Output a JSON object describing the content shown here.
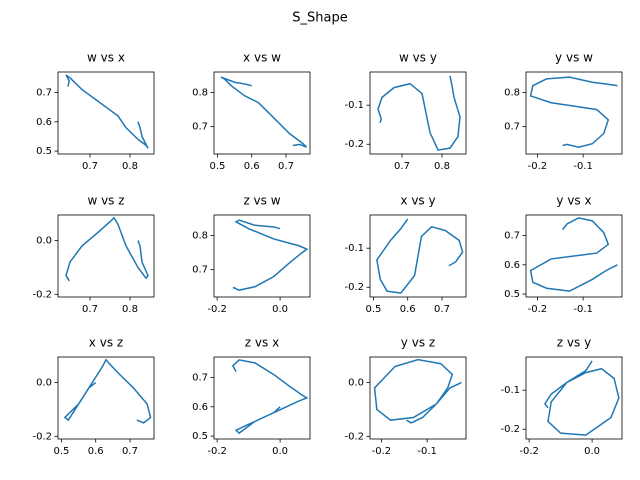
{
  "title": "S_Shape",
  "chart_data": [
    {
      "type": "line",
      "title": "w vs x",
      "x": [
        0.645,
        0.648,
        0.64,
        0.65,
        0.68,
        0.72,
        0.75,
        0.76,
        0.77,
        0.79,
        0.82,
        0.84,
        0.845,
        0.83,
        0.825,
        0.82
      ],
      "series": [
        {
          "color": "#1f77b4",
          "values": [
            0.72,
            0.74,
            0.76,
            0.75,
            0.71,
            0.67,
            0.64,
            0.63,
            0.62,
            0.58,
            0.54,
            0.52,
            0.51,
            0.55,
            0.58,
            0.6
          ]
        }
      ],
      "xlim": [
        0.62,
        0.86
      ],
      "ylim": [
        0.49,
        0.77
      ],
      "xticks": [
        0.7,
        0.8
      ],
      "yticks": [
        0.5,
        0.6,
        0.7
      ]
    },
    {
      "type": "line",
      "title": "x vs w",
      "x": [
        0.72,
        0.74,
        0.76,
        0.75,
        0.71,
        0.67,
        0.64,
        0.63,
        0.62,
        0.58,
        0.54,
        0.52,
        0.51,
        0.55,
        0.58,
        0.6
      ],
      "series": [
        {
          "color": "#1f77b4",
          "values": [
            0.645,
            0.648,
            0.64,
            0.65,
            0.68,
            0.72,
            0.75,
            0.76,
            0.77,
            0.79,
            0.82,
            0.84,
            0.845,
            0.83,
            0.825,
            0.82
          ]
        }
      ],
      "xlim": [
        0.49,
        0.77
      ],
      "ylim": [
        0.62,
        0.86
      ],
      "xticks": [
        0.5,
        0.6,
        0.7
      ],
      "yticks": [
        0.7,
        0.8
      ]
    },
    {
      "type": "line",
      "title": "w vs y",
      "x": [
        0.645,
        0.648,
        0.64,
        0.65,
        0.68,
        0.72,
        0.75,
        0.76,
        0.77,
        0.79,
        0.82,
        0.84,
        0.845,
        0.83,
        0.825,
        0.82
      ],
      "series": [
        {
          "color": "#1f77b4",
          "values": [
            -0.145,
            -0.135,
            -0.11,
            -0.08,
            -0.055,
            -0.045,
            -0.07,
            -0.12,
            -0.17,
            -0.215,
            -0.21,
            -0.18,
            -0.13,
            -0.08,
            -0.05,
            -0.025
          ]
        }
      ],
      "xlim": [
        0.62,
        0.86
      ],
      "ylim": [
        -0.225,
        -0.015
      ],
      "xticks": [
        0.7,
        0.8
      ],
      "yticks": [
        -0.2,
        -0.1
      ]
    },
    {
      "type": "line",
      "title": "y vs w",
      "x": [
        -0.145,
        -0.135,
        -0.11,
        -0.08,
        -0.055,
        -0.045,
        -0.07,
        -0.12,
        -0.17,
        -0.215,
        -0.21,
        -0.18,
        -0.13,
        -0.08,
        -0.05,
        -0.025
      ],
      "series": [
        {
          "color": "#1f77b4",
          "values": [
            0.645,
            0.648,
            0.64,
            0.65,
            0.68,
            0.72,
            0.75,
            0.76,
            0.77,
            0.79,
            0.82,
            0.84,
            0.845,
            0.83,
            0.825,
            0.82
          ]
        }
      ],
      "xlim": [
        -0.225,
        -0.015
      ],
      "ylim": [
        0.62,
        0.86
      ],
      "xticks": [
        -0.2,
        -0.1
      ],
      "yticks": [
        0.7,
        0.8
      ]
    },
    {
      "type": "line",
      "title": "w vs z",
      "x": [
        0.645,
        0.648,
        0.64,
        0.65,
        0.68,
        0.72,
        0.75,
        0.76,
        0.77,
        0.79,
        0.82,
        0.84,
        0.845,
        0.83,
        0.825,
        0.82
      ],
      "series": [
        {
          "color": "#1f77b4",
          "values": [
            -0.14,
            -0.15,
            -0.13,
            -0.08,
            -0.02,
            0.03,
            0.07,
            0.085,
            0.06,
            -0.02,
            -0.1,
            -0.14,
            -0.13,
            -0.08,
            -0.02,
            0.0
          ]
        }
      ],
      "xlim": [
        0.62,
        0.86
      ],
      "ylim": [
        -0.21,
        0.095
      ],
      "xticks": [
        0.7,
        0.8
      ],
      "yticks": [
        -0.2,
        {
          "value": 0,
          "label": "0.0"
        }
      ]
    },
    {
      "type": "line",
      "title": "z vs w",
      "x": [
        -0.14,
        -0.15,
        -0.13,
        -0.08,
        -0.02,
        0.03,
        0.07,
        0.085,
        0.06,
        -0.02,
        -0.1,
        -0.14,
        -0.13,
        -0.08,
        -0.02,
        0.0
      ],
      "series": [
        {
          "color": "#1f77b4",
          "values": [
            0.645,
            0.648,
            0.64,
            0.65,
            0.68,
            0.72,
            0.75,
            0.76,
            0.77,
            0.79,
            0.82,
            0.84,
            0.845,
            0.83,
            0.825,
            0.82
          ]
        }
      ],
      "xlim": [
        -0.21,
        0.095
      ],
      "ylim": [
        0.62,
        0.86
      ],
      "xticks": [
        -0.2,
        {
          "value": 0,
          "label": "0.0"
        }
      ],
      "yticks": [
        0.7,
        0.8
      ]
    },
    {
      "type": "line",
      "title": "x vs y",
      "x": [
        0.72,
        0.74,
        0.76,
        0.75,
        0.71,
        0.67,
        0.64,
        0.63,
        0.62,
        0.58,
        0.54,
        0.52,
        0.51,
        0.55,
        0.58,
        0.6
      ],
      "series": [
        {
          "color": "#1f77b4",
          "values": [
            -0.145,
            -0.135,
            -0.11,
            -0.08,
            -0.055,
            -0.045,
            -0.07,
            -0.12,
            -0.17,
            -0.215,
            -0.21,
            -0.18,
            -0.13,
            -0.08,
            -0.05,
            -0.025
          ]
        }
      ],
      "xlim": [
        0.49,
        0.77
      ],
      "ylim": [
        -0.225,
        -0.015
      ],
      "xticks": [
        0.5,
        0.6,
        0.7
      ],
      "yticks": [
        -0.2,
        -0.1
      ]
    },
    {
      "type": "line",
      "title": "y vs x",
      "x": [
        -0.145,
        -0.135,
        -0.11,
        -0.08,
        -0.055,
        -0.045,
        -0.07,
        -0.12,
        -0.17,
        -0.215,
        -0.21,
        -0.18,
        -0.13,
        -0.08,
        -0.05,
        -0.025
      ],
      "series": [
        {
          "color": "#1f77b4",
          "values": [
            0.72,
            0.74,
            0.76,
            0.75,
            0.71,
            0.67,
            0.64,
            0.63,
            0.62,
            0.58,
            0.54,
            0.52,
            0.51,
            0.55,
            0.58,
            0.6
          ]
        }
      ],
      "xlim": [
        -0.225,
        -0.015
      ],
      "ylim": [
        0.49,
        0.77
      ],
      "xticks": [
        -0.2,
        -0.1
      ],
      "yticks": [
        0.5,
        0.6,
        0.7
      ]
    },
    {
      "type": "line",
      "title": "x vs z",
      "x": [
        0.72,
        0.74,
        0.76,
        0.75,
        0.71,
        0.67,
        0.64,
        0.63,
        0.62,
        0.58,
        0.54,
        0.52,
        0.51,
        0.55,
        0.58,
        0.6
      ],
      "series": [
        {
          "color": "#1f77b4",
          "values": [
            -0.14,
            -0.15,
            -0.13,
            -0.08,
            -0.02,
            0.03,
            0.07,
            0.085,
            0.06,
            -0.02,
            -0.1,
            -0.14,
            -0.13,
            -0.08,
            -0.02,
            0.0
          ]
        }
      ],
      "xlim": [
        0.49,
        0.77
      ],
      "ylim": [
        -0.21,
        0.095
      ],
      "xticks": [
        0.5,
        0.6,
        0.7
      ],
      "yticks": [
        -0.2,
        {
          "value": 0,
          "label": "0.0"
        }
      ]
    },
    {
      "type": "line",
      "title": "z vs x",
      "x": [
        -0.14,
        -0.15,
        -0.13,
        -0.08,
        -0.02,
        0.03,
        0.07,
        0.085,
        0.06,
        -0.02,
        -0.1,
        -0.14,
        -0.13,
        -0.08,
        -0.02,
        0.0
      ],
      "series": [
        {
          "color": "#1f77b4",
          "values": [
            0.72,
            0.74,
            0.76,
            0.75,
            0.71,
            0.67,
            0.64,
            0.63,
            0.62,
            0.58,
            0.54,
            0.52,
            0.51,
            0.55,
            0.58,
            0.6
          ]
        }
      ],
      "xlim": [
        -0.21,
        0.095
      ],
      "ylim": [
        0.49,
        0.77
      ],
      "xticks": [
        -0.2,
        {
          "value": 0,
          "label": "0.0"
        }
      ],
      "yticks": [
        0.5,
        0.6,
        0.7
      ]
    },
    {
      "type": "line",
      "title": "y vs z",
      "x": [
        -0.145,
        -0.135,
        -0.11,
        -0.08,
        -0.055,
        -0.045,
        -0.07,
        -0.12,
        -0.17,
        -0.215,
        -0.21,
        -0.18,
        -0.13,
        -0.08,
        -0.05,
        -0.025
      ],
      "series": [
        {
          "color": "#1f77b4",
          "values": [
            -0.14,
            -0.15,
            -0.13,
            -0.08,
            -0.02,
            0.03,
            0.07,
            0.085,
            0.06,
            -0.02,
            -0.1,
            -0.14,
            -0.13,
            -0.08,
            -0.02,
            0.0
          ]
        }
      ],
      "xlim": [
        -0.225,
        -0.015
      ],
      "ylim": [
        -0.21,
        0.095
      ],
      "xticks": [
        -0.2,
        -0.1
      ],
      "yticks": [
        -0.2,
        {
          "value": 0,
          "label": "0.0"
        }
      ]
    },
    {
      "type": "line",
      "title": "z vs y",
      "x": [
        -0.14,
        -0.15,
        -0.13,
        -0.08,
        -0.02,
        0.03,
        0.07,
        0.085,
        0.06,
        -0.02,
        -0.1,
        -0.14,
        -0.13,
        -0.08,
        -0.02,
        0.0
      ],
      "series": [
        {
          "color": "#1f77b4",
          "values": [
            -0.145,
            -0.135,
            -0.11,
            -0.08,
            -0.055,
            -0.045,
            -0.07,
            -0.12,
            -0.17,
            -0.215,
            -0.21,
            -0.18,
            -0.13,
            -0.08,
            -0.05,
            -0.025
          ]
        }
      ],
      "xlim": [
        -0.21,
        0.095
      ],
      "ylim": [
        -0.225,
        -0.015
      ],
      "xticks": [
        -0.2,
        {
          "value": 0,
          "label": "0.0"
        }
      ],
      "yticks": [
        -0.2,
        -0.1
      ]
    }
  ]
}
